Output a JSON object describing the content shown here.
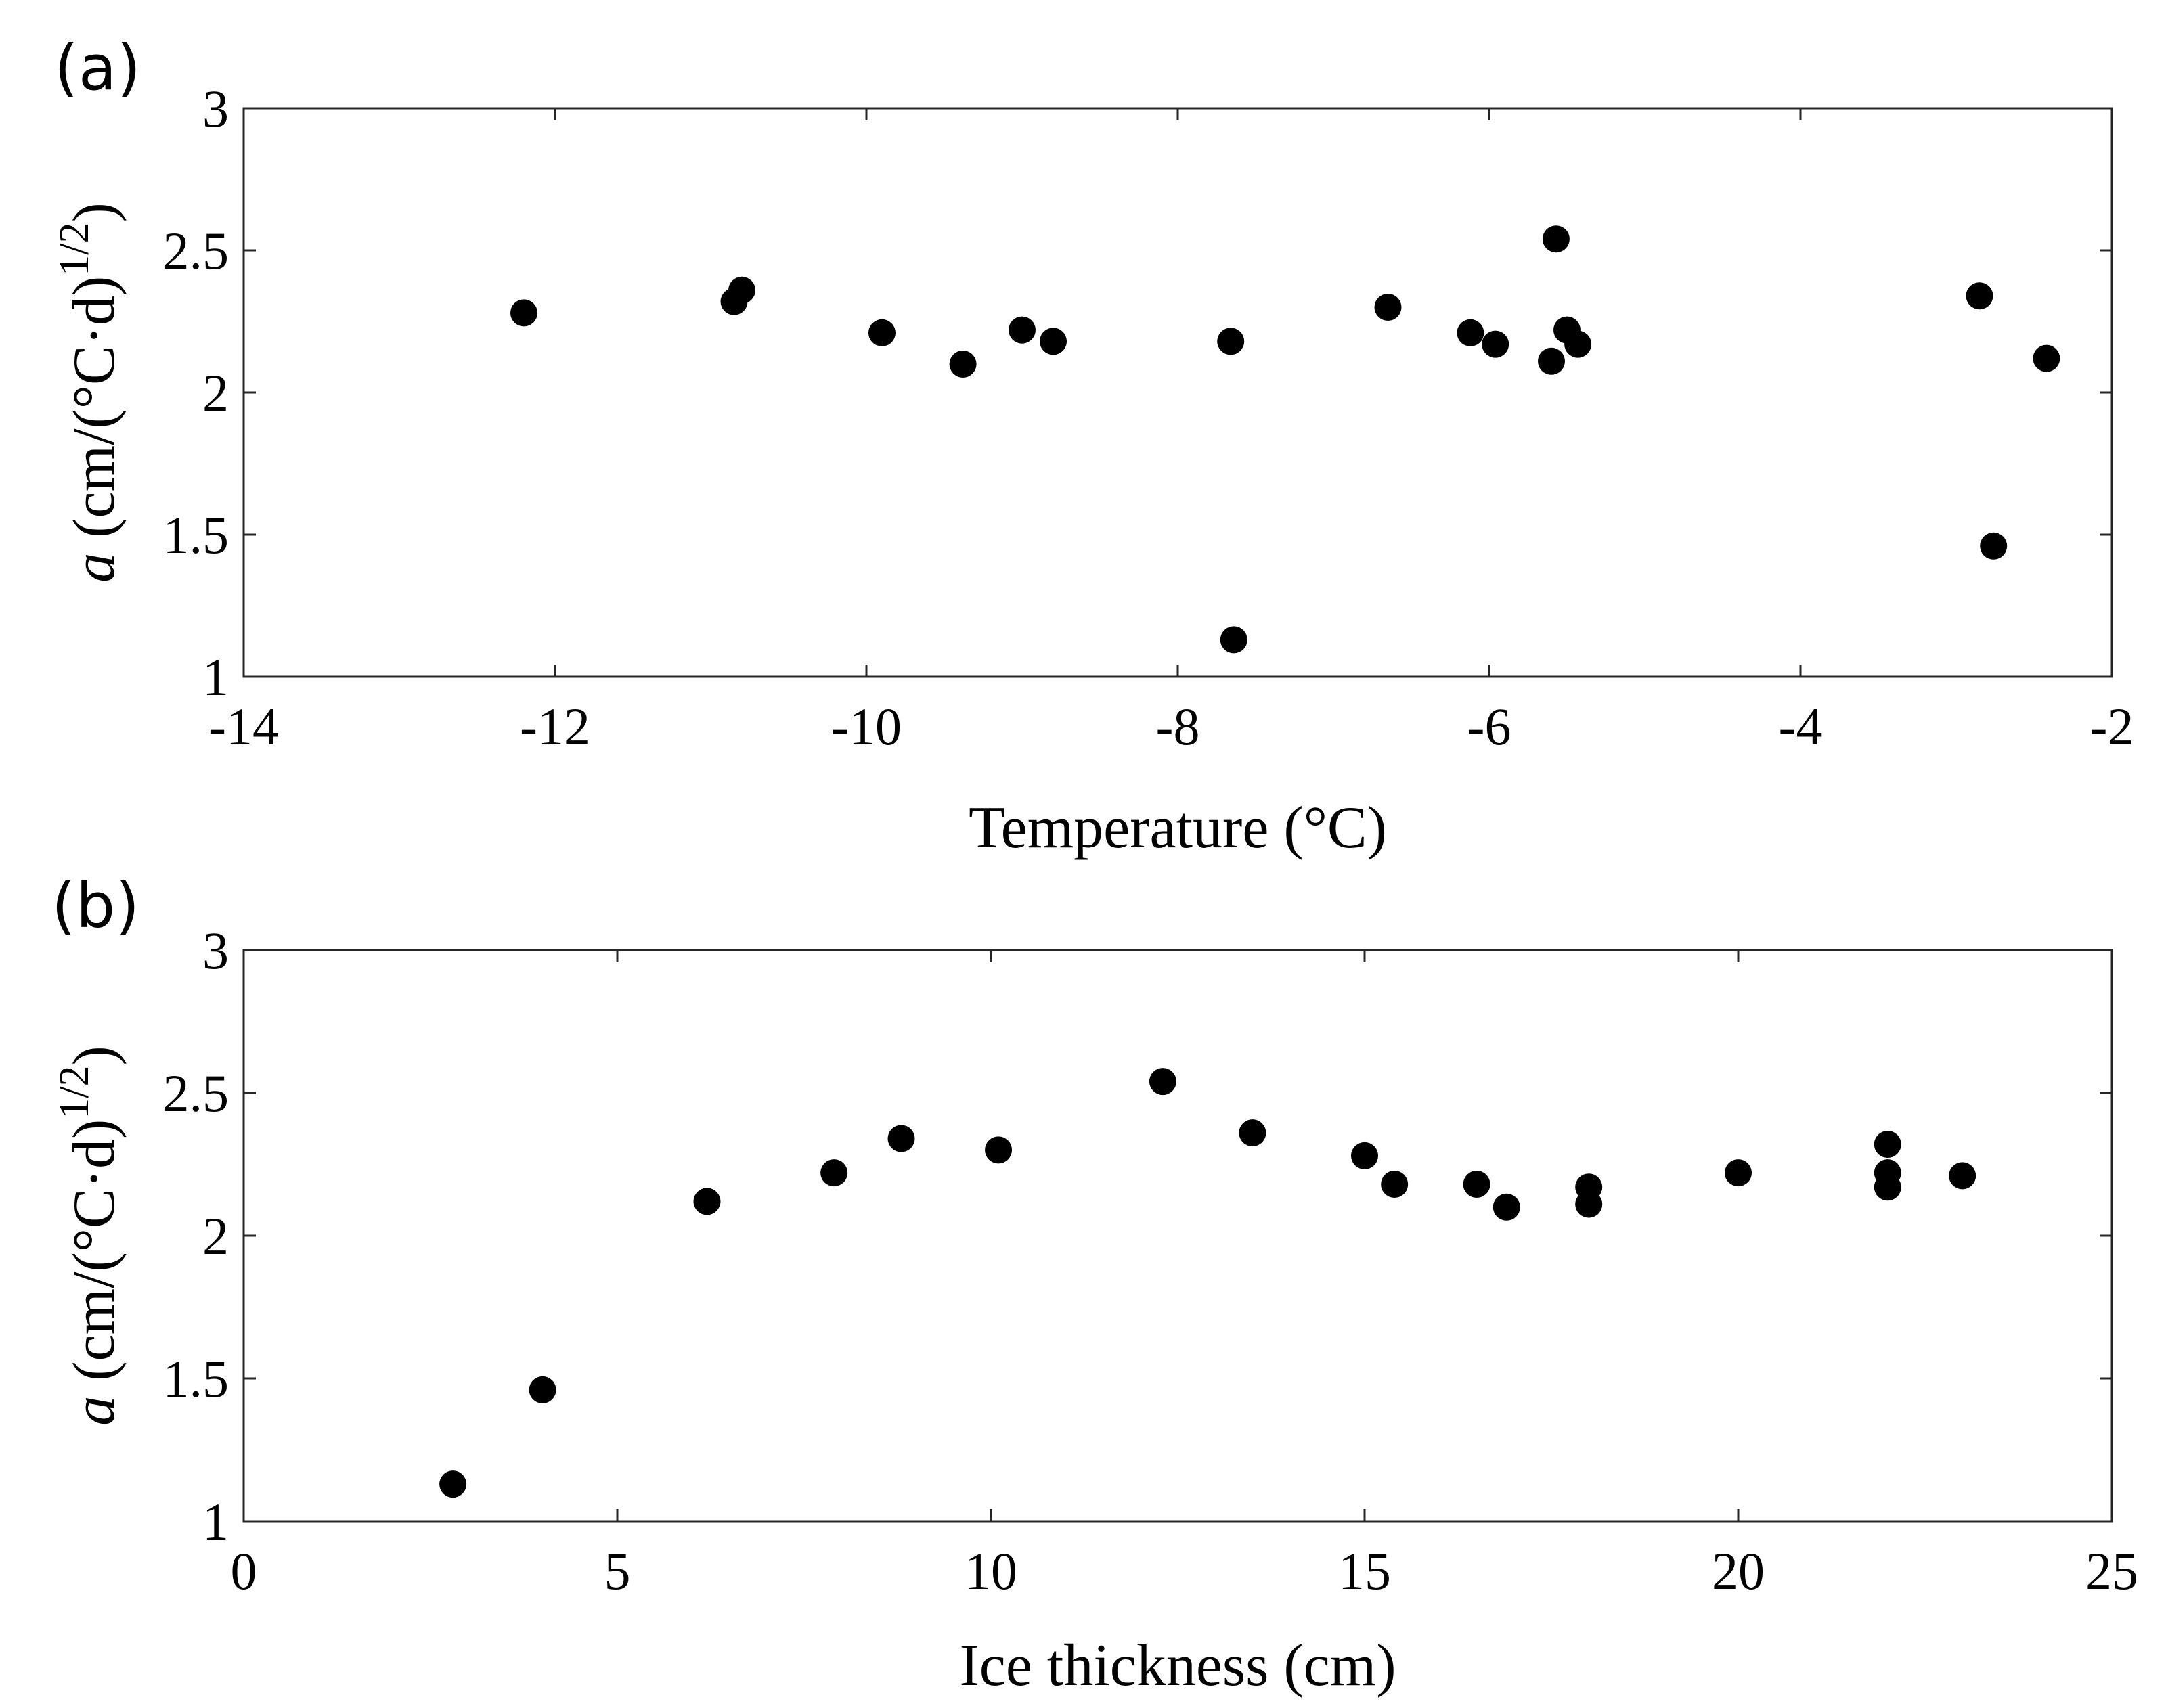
{
  "chart_data": [
    {
      "type": "scatter",
      "panel_label": "(a)",
      "xlabel": "Temperature (°C)",
      "ylabel_italic": "a",
      "ylabel_units": " (cm/(°C·d)",
      "ylabel_exponent": "1/2",
      "ylabel_close": ")",
      "xlim": [
        -14,
        -2
      ],
      "ylim": [
        1,
        3
      ],
      "xticks": [
        -14,
        -12,
        -10,
        -8,
        -6,
        -4,
        -2
      ],
      "yticks": [
        1,
        1.5,
        2,
        2.5,
        3
      ],
      "xtick_labels": [
        "-14",
        "-12",
        "-10",
        "-8",
        "-6",
        "-4",
        "-2"
      ],
      "ytick_labels": [
        "1",
        "1.5",
        "2",
        "2.5",
        "3"
      ],
      "grid": false,
      "marker_color": "#000000",
      "points": [
        {
          "x": -12.2,
          "y": 2.28
        },
        {
          "x": -10.85,
          "y": 2.32
        },
        {
          "x": -10.8,
          "y": 2.36
        },
        {
          "x": -9.9,
          "y": 2.21
        },
        {
          "x": -9.38,
          "y": 2.1
        },
        {
          "x": -9.0,
          "y": 2.22
        },
        {
          "x": -8.8,
          "y": 2.18
        },
        {
          "x": -7.66,
          "y": 2.18
        },
        {
          "x": -7.64,
          "y": 1.13
        },
        {
          "x": -6.65,
          "y": 2.3
        },
        {
          "x": -6.12,
          "y": 2.21
        },
        {
          "x": -5.96,
          "y": 2.17
        },
        {
          "x": -5.6,
          "y": 2.11
        },
        {
          "x": -5.57,
          "y": 2.54
        },
        {
          "x": -5.5,
          "y": 2.22
        },
        {
          "x": -5.43,
          "y": 2.17
        },
        {
          "x": -2.85,
          "y": 2.34
        },
        {
          "x": -2.76,
          "y": 1.46
        },
        {
          "x": -2.42,
          "y": 2.12
        }
      ]
    },
    {
      "type": "scatter",
      "panel_label": "(b)",
      "xlabel": "Ice thickness (cm)",
      "ylabel_italic": "a",
      "ylabel_units": " (cm/(°C·d)",
      "ylabel_exponent": "1/2",
      "ylabel_close": ")",
      "xlim": [
        0,
        25
      ],
      "ylim": [
        1,
        3
      ],
      "xticks": [
        0,
        5,
        10,
        15,
        20,
        25
      ],
      "yticks": [
        1,
        1.5,
        2,
        2.5,
        3
      ],
      "xtick_labels": [
        "0",
        "5",
        "10",
        "15",
        "20",
        "25"
      ],
      "ytick_labels": [
        "1",
        "1.5",
        "2",
        "2.5",
        "3"
      ],
      "grid": false,
      "marker_color": "#000000",
      "points": [
        {
          "x": 2.8,
          "y": 1.13
        },
        {
          "x": 4.0,
          "y": 1.46
        },
        {
          "x": 6.2,
          "y": 2.12
        },
        {
          "x": 7.9,
          "y": 2.22
        },
        {
          "x": 8.8,
          "y": 2.34
        },
        {
          "x": 10.1,
          "y": 2.3
        },
        {
          "x": 12.3,
          "y": 2.54
        },
        {
          "x": 13.5,
          "y": 2.36
        },
        {
          "x": 15.0,
          "y": 2.28
        },
        {
          "x": 15.4,
          "y": 2.18
        },
        {
          "x": 16.5,
          "y": 2.18
        },
        {
          "x": 16.9,
          "y": 2.1
        },
        {
          "x": 18.0,
          "y": 2.17
        },
        {
          "x": 18.0,
          "y": 2.11
        },
        {
          "x": 20.0,
          "y": 2.22
        },
        {
          "x": 22.0,
          "y": 2.32
        },
        {
          "x": 22.0,
          "y": 2.22
        },
        {
          "x": 22.0,
          "y": 2.17
        },
        {
          "x": 23.0,
          "y": 2.21
        }
      ]
    }
  ]
}
